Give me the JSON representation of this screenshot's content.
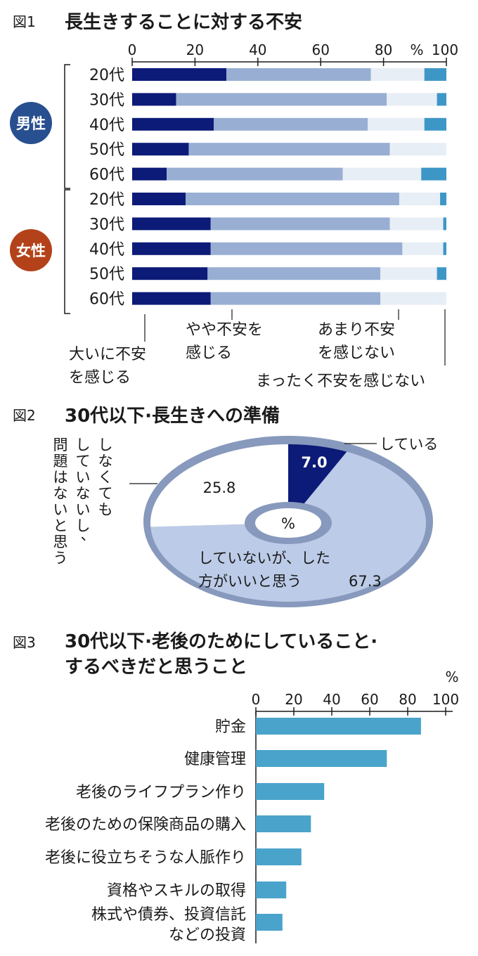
{
  "colors": {
    "very": "#0c1a78",
    "somewhat": "#98aed3",
    "notmuch": "#e8eef5",
    "notatall": "#3d97c6",
    "male_badge": "#284f8f",
    "female_badge": "#b3421a",
    "fig3_bar": "#4aa3cb",
    "pie_main": "#bccbe7",
    "pie_shade": "#8799bc",
    "pie_white": "#ffffff",
    "pie_dark": "#0c1a78"
  },
  "fig1": {
    "label": "図1",
    "title": "長生きすることに対する不安",
    "unit": "%",
    "ticks": [
      "0",
      "20",
      "40",
      "60",
      "80",
      "100"
    ],
    "groups": [
      {
        "label": "男性"
      },
      {
        "label": "女性"
      }
    ],
    "legend": [
      {
        "key": "very",
        "lines": [
          "大いに不安",
          "を感じる"
        ]
      },
      {
        "key": "somewhat",
        "lines": [
          "やや不安を",
          "感じる"
        ]
      },
      {
        "key": "notmuch",
        "lines": [
          "あまり不安",
          "を感じない"
        ]
      },
      {
        "key": "notatall",
        "lines": [
          "まったく不安を感じない"
        ]
      }
    ]
  },
  "fig2": {
    "label": "図2",
    "title": "30代以下·長生きへの準備",
    "center_unit": "%",
    "label_doing": "している",
    "value_doing": "7.0",
    "label_notneed": [
      "しなくても",
      "していないし、",
      "問題はないと思う"
    ],
    "value_notneed": "25.8",
    "label_should": [
      "していないが、した",
      "方がいいと思う"
    ],
    "value_should": "67.3"
  },
  "fig3": {
    "label": "図3",
    "title_lines": [
      "30代以下·老後のためにしていること·",
      "するべきだと思うこと"
    ],
    "unit": "%",
    "ticks": [
      "0",
      "20",
      "40",
      "60",
      "80",
      "100"
    ],
    "categories": [
      [
        "貯金"
      ],
      [
        "健康管理"
      ],
      [
        "老後のライフプラン作り"
      ],
      [
        "老後のための保険商品の購入"
      ],
      [
        "老後に役立ちそうな人脈作り"
      ],
      [
        "資格やスキルの取得"
      ],
      [
        "株式や債券、投資信託",
        "などの投資"
      ]
    ]
  },
  "chart_data": [
    {
      "type": "bar",
      "stacked": true,
      "orientation": "horizontal",
      "title": "長生きすることに対する不安",
      "unit": "%",
      "xlim": [
        0,
        100
      ],
      "categories": [
        "男性 20代",
        "男性 30代",
        "男性 40代",
        "男性 50代",
        "男性 60代",
        "女性 20代",
        "女性 30代",
        "女性 40代",
        "女性 50代",
        "女性 60代"
      ],
      "category_labels": [
        "20代",
        "30代",
        "40代",
        "50代",
        "60代",
        "20代",
        "30代",
        "40代",
        "50代",
        "60代"
      ],
      "series": [
        {
          "name": "大いに不安を感じる",
          "key": "very",
          "values": [
            30,
            14,
            26,
            18,
            11,
            17,
            25,
            25,
            24,
            25
          ]
        },
        {
          "name": "やや不安を感じる",
          "key": "somewhat",
          "values": [
            46,
            67,
            49,
            64,
            56,
            68,
            57,
            61,
            55,
            54
          ]
        },
        {
          "name": "あまり不安を感じない",
          "key": "notmuch",
          "values": [
            17,
            16,
            18,
            18,
            25,
            13,
            17,
            13,
            18,
            21
          ]
        },
        {
          "name": "まったく不安を感じない",
          "key": "notatall",
          "values": [
            7,
            3,
            7,
            0,
            8,
            2,
            1,
            1,
            3,
            0
          ]
        }
      ]
    },
    {
      "type": "pie",
      "title": "30代以下·長生きへの準備",
      "unit": "%",
      "slices": [
        {
          "name": "している",
          "value": 7.0
        },
        {
          "name": "していないが、した方がいいと思う",
          "value": 67.3
        },
        {
          "name": "していないし、しなくても問題はないと思う",
          "value": 25.8
        }
      ]
    },
    {
      "type": "bar",
      "orientation": "horizontal",
      "title": "30代以下·老後のためにしていること·するべきだと思うこと",
      "unit": "%",
      "xlim": [
        0,
        100
      ],
      "categories": [
        "貯金",
        "健康管理",
        "老後のライフプラン作り",
        "老後のための保険商品の購入",
        "老後に役立ちそうな人脈作り",
        "資格やスキルの取得",
        "株式や債券、投資信託などの投資"
      ],
      "values": [
        87,
        69,
        36,
        29,
        24,
        16,
        14
      ]
    }
  ]
}
